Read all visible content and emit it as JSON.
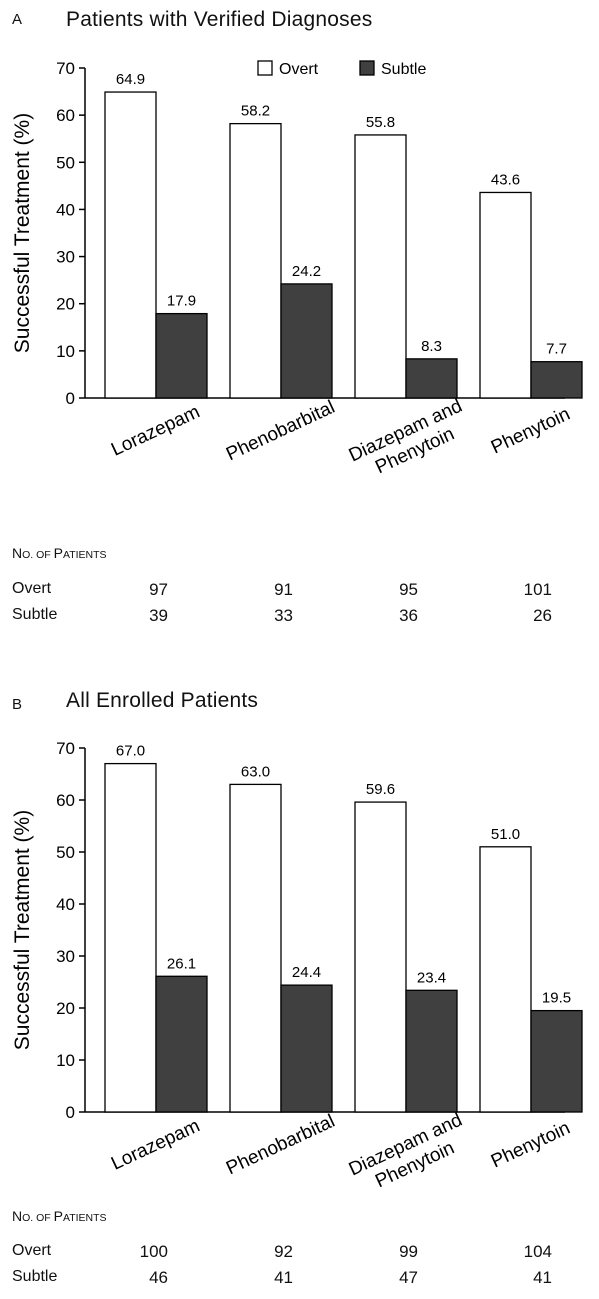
{
  "chart_data": [
    {
      "type": "bar",
      "panel": "A",
      "title": "Patients with Verified Diagnoses",
      "ylabel": "Successful Treatment (%)",
      "xlabel": "",
      "ylim": [
        0,
        70
      ],
      "yticks": [
        0,
        10,
        20,
        30,
        40,
        50,
        60,
        70
      ],
      "categories": [
        "Lorazepam",
        "Phenobarbital",
        "Diazepam and Phenytoin",
        "Phenytoin"
      ],
      "category_lines": [
        [
          "Lorazepam"
        ],
        [
          "Phenobarbital"
        ],
        [
          "Diazepam and",
          "Phenytoin"
        ],
        [
          "Phenytoin"
        ]
      ],
      "series": [
        {
          "name": "Overt",
          "color": "#ffffff",
          "values": [
            64.9,
            58.2,
            55.8,
            43.6
          ]
        },
        {
          "name": "Subtle",
          "color": "#404040",
          "values": [
            17.9,
            24.2,
            8.3,
            7.7
          ]
        }
      ],
      "legend": "top-right",
      "patients_table": {
        "heading_first": "N",
        "heading_small_1": "O",
        "heading_dot": ".",
        "heading_mid": " OF ",
        "heading_first_2": "P",
        "heading_small_2": "ATIENTS",
        "rows": [
          {
            "label": "Overt",
            "values": [
              97,
              91,
              95,
              101
            ]
          },
          {
            "label": "Subtle",
            "values": [
              39,
              33,
              36,
              26
            ]
          }
        ]
      }
    },
    {
      "type": "bar",
      "panel": "B",
      "title": "All Enrolled Patients",
      "ylabel": "Successful Treatment (%)",
      "xlabel": "",
      "ylim": [
        0,
        70
      ],
      "yticks": [
        0,
        10,
        20,
        30,
        40,
        50,
        60,
        70
      ],
      "categories": [
        "Lorazepam",
        "Phenobarbital",
        "Diazepam and Phenytoin",
        "Phenytoin"
      ],
      "category_lines": [
        [
          "Lorazepam"
        ],
        [
          "Phenobarbital"
        ],
        [
          "Diazepam and",
          "Phenytoin"
        ],
        [
          "Phenytoin"
        ]
      ],
      "series": [
        {
          "name": "Overt",
          "color": "#ffffff",
          "values": [
            67.0,
            63.0,
            59.6,
            51.0
          ]
        },
        {
          "name": "Subtle",
          "color": "#404040",
          "values": [
            26.1,
            24.4,
            23.4,
            19.5
          ]
        }
      ],
      "legend": "none",
      "patients_table": {
        "heading_first": "N",
        "heading_small_1": "O",
        "heading_dot": ".",
        "heading_mid": " OF ",
        "heading_first_2": "P",
        "heading_small_2": "ATIENTS",
        "rows": [
          {
            "label": "Overt",
            "values": [
              100,
              92,
              99,
              104
            ]
          },
          {
            "label": "Subtle",
            "values": [
              46,
              41,
              47,
              41
            ]
          }
        ]
      }
    }
  ],
  "panels": {
    "A": {
      "letter": "A",
      "title": "Patients with Verified Diagnoses"
    },
    "B": {
      "letter": "B",
      "title": "All Enrolled Patients"
    }
  }
}
